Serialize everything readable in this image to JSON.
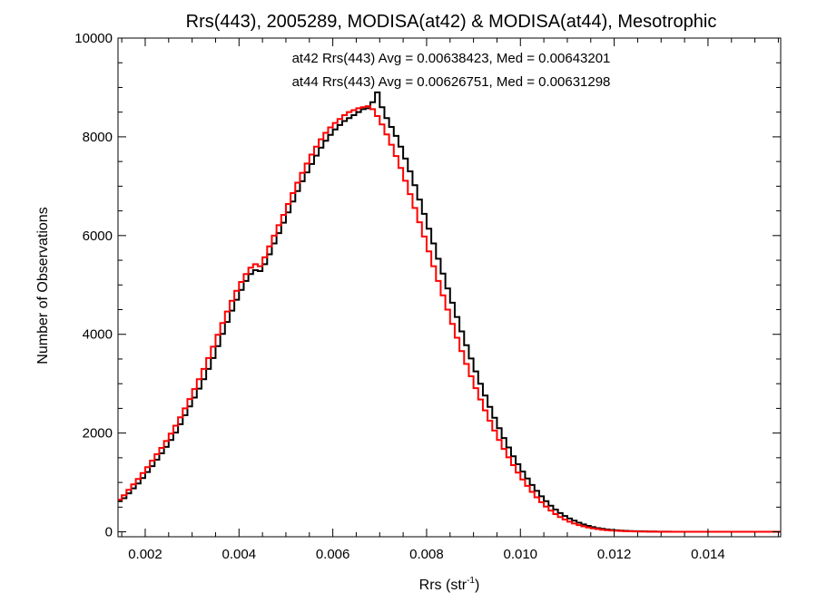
{
  "chart_data": {
    "type": "line",
    "title": "Rrs(443), 2005289, MODISA(at42) & MODISA(at44), Mesotrophic",
    "xlabel_base": "Rrs (str",
    "xlabel_sup": "-1",
    "xlabel_close": ")",
    "ylabel": "Number of Observations",
    "xlim": [
      0.00142,
      0.01555
    ],
    "ylim": [
      -100,
      10000
    ],
    "x_ticks": [
      "0.002",
      "0.004",
      "0.006",
      "0.008",
      "0.010",
      "0.012",
      "0.014"
    ],
    "x_tick_values": [
      0.002,
      0.004,
      0.006,
      0.008,
      0.01,
      0.012,
      0.014
    ],
    "y_ticks": [
      "0",
      "2000",
      "4000",
      "6000",
      "8000",
      "10000"
    ],
    "y_tick_values": [
      0,
      2000,
      4000,
      6000,
      8000,
      10000
    ],
    "grid": false,
    "annotations": [
      {
        "text": "at42 Rrs(443) Avg = 0.00638423, Med = 0.00643201",
        "color": "#000000"
      },
      {
        "text": "at44 Rrs(443) Avg = 0.00626751, Med = 0.00631298",
        "color": "#ff0000"
      }
    ],
    "series": [
      {
        "color": "#000000",
        "x": [
          0.00142,
          0.0015,
          0.0016,
          0.0017,
          0.0018,
          0.0019,
          0.002,
          0.0021,
          0.0022,
          0.0023,
          0.0024,
          0.0025,
          0.0026,
          0.0027,
          0.0028,
          0.0029,
          0.003,
          0.0031,
          0.0032,
          0.0033,
          0.0034,
          0.0035,
          0.0036,
          0.0037,
          0.0038,
          0.0039,
          0.004,
          0.0041,
          0.0042,
          0.0043,
          0.0044,
          0.0045,
          0.0046,
          0.0047,
          0.0048,
          0.0049,
          0.005,
          0.0051,
          0.0052,
          0.0053,
          0.0054,
          0.0055,
          0.0056,
          0.0057,
          0.0058,
          0.0059,
          0.006,
          0.0061,
          0.0062,
          0.0063,
          0.0064,
          0.0065,
          0.0066,
          0.0067,
          0.0068,
          0.0069,
          0.007,
          0.0071,
          0.0072,
          0.0073,
          0.0074,
          0.0075,
          0.0076,
          0.0077,
          0.0078,
          0.0079,
          0.008,
          0.0081,
          0.0082,
          0.0083,
          0.0084,
          0.0085,
          0.0086,
          0.0087,
          0.0088,
          0.0089,
          0.009,
          0.0091,
          0.0092,
          0.0093,
          0.0094,
          0.0095,
          0.0096,
          0.0097,
          0.0098,
          0.0099,
          0.01,
          0.0101,
          0.0102,
          0.0103,
          0.0104,
          0.0105,
          0.0106,
          0.0107,
          0.0108,
          0.0109,
          0.011,
          0.0111,
          0.0112,
          0.0113,
          0.0114,
          0.0115,
          0.0116,
          0.0117,
          0.0118,
          0.0119,
          0.012,
          0.0121,
          0.0122,
          0.0123,
          0.0124,
          0.0125,
          0.0126,
          0.0127,
          0.0128,
          0.0129,
          0.013,
          0.0132,
          0.0134,
          0.0136,
          0.0138,
          0.014,
          0.0142,
          0.0144,
          0.0146,
          0.0148,
          0.015,
          0.0152,
          0.01555
        ],
        "values": [
          620,
          680,
          780,
          880,
          980,
          1090,
          1210,
          1330,
          1460,
          1590,
          1720,
          1860,
          2010,
          2180,
          2360,
          2540,
          2720,
          2900,
          3090,
          3300,
          3520,
          3760,
          4010,
          4250,
          4480,
          4700,
          4900,
          5080,
          5220,
          5300,
          5280,
          5420,
          5620,
          5840,
          6050,
          6260,
          6470,
          6690,
          6900,
          7100,
          7280,
          7450,
          7620,
          7780,
          7920,
          8040,
          8150,
          8240,
          8320,
          8380,
          8440,
          8500,
          8560,
          8580,
          8700,
          8900,
          8600,
          8380,
          8200,
          8020,
          7800,
          7560,
          7300,
          7020,
          6730,
          6440,
          6140,
          5840,
          5530,
          5230,
          4930,
          4640,
          4350,
          4060,
          3780,
          3510,
          3250,
          3000,
          2760,
          2530,
          2310,
          2100,
          1900,
          1710,
          1530,
          1370,
          1220,
          1080,
          950,
          830,
          720,
          620,
          530,
          450,
          380,
          320,
          270,
          225,
          185,
          150,
          120,
          95,
          75,
          60,
          48,
          38,
          30,
          24,
          19,
          15,
          12,
          10,
          8,
          6,
          5,
          4,
          3,
          2,
          2,
          1,
          1,
          1,
          1,
          0,
          0,
          0,
          0,
          0,
          0
        ]
      },
      {
        "color": "#ff0000",
        "x": [
          0.00142,
          0.0015,
          0.0016,
          0.0017,
          0.0018,
          0.0019,
          0.002,
          0.0021,
          0.0022,
          0.0023,
          0.0024,
          0.0025,
          0.0026,
          0.0027,
          0.0028,
          0.0029,
          0.003,
          0.0031,
          0.0032,
          0.0033,
          0.0034,
          0.0035,
          0.0036,
          0.0037,
          0.0038,
          0.0039,
          0.004,
          0.0041,
          0.0042,
          0.0043,
          0.0044,
          0.0045,
          0.0046,
          0.0047,
          0.0048,
          0.0049,
          0.005,
          0.0051,
          0.0052,
          0.0053,
          0.0054,
          0.0055,
          0.0056,
          0.0057,
          0.0058,
          0.0059,
          0.006,
          0.0061,
          0.0062,
          0.0063,
          0.0064,
          0.0065,
          0.0066,
          0.0067,
          0.0068,
          0.0069,
          0.007,
          0.0071,
          0.0072,
          0.0073,
          0.0074,
          0.0075,
          0.0076,
          0.0077,
          0.0078,
          0.0079,
          0.008,
          0.0081,
          0.0082,
          0.0083,
          0.0084,
          0.0085,
          0.0086,
          0.0087,
          0.0088,
          0.0089,
          0.009,
          0.0091,
          0.0092,
          0.0093,
          0.0094,
          0.0095,
          0.0096,
          0.0097,
          0.0098,
          0.0099,
          0.01,
          0.0101,
          0.0102,
          0.0103,
          0.0104,
          0.0105,
          0.0106,
          0.0107,
          0.0108,
          0.0109,
          0.011,
          0.0111,
          0.0112,
          0.0113,
          0.0114,
          0.0115,
          0.0116,
          0.0117,
          0.0118,
          0.0119,
          0.012,
          0.0121,
          0.0122,
          0.0123,
          0.0124,
          0.0125,
          0.0126,
          0.0127,
          0.0128,
          0.0129,
          0.013,
          0.0132,
          0.0134,
          0.0136,
          0.0138,
          0.014,
          0.0142,
          0.0144,
          0.0146,
          0.0148,
          0.015,
          0.0152,
          0.01555
        ],
        "values": [
          650,
          740,
          850,
          960,
          1070,
          1190,
          1310,
          1440,
          1570,
          1700,
          1840,
          1990,
          2150,
          2320,
          2500,
          2690,
          2890,
          3090,
          3300,
          3520,
          3750,
          3990,
          4230,
          4460,
          4680,
          4880,
          5060,
          5220,
          5350,
          5420,
          5380,
          5560,
          5780,
          6000,
          6210,
          6420,
          6640,
          6860,
          7070,
          7270,
          7460,
          7640,
          7800,
          7950,
          8080,
          8190,
          8280,
          8360,
          8440,
          8500,
          8540,
          8580,
          8600,
          8620,
          8560,
          8420,
          8250,
          8050,
          7840,
          7610,
          7370,
          7110,
          6840,
          6560,
          6270,
          5980,
          5680,
          5380,
          5080,
          4790,
          4500,
          4210,
          3930,
          3660,
          3400,
          3150,
          2910,
          2680,
          2460,
          2250,
          2050,
          1860,
          1680,
          1510,
          1350,
          1200,
          1060,
          930,
          810,
          700,
          600,
          510,
          430,
          360,
          300,
          250,
          205,
          168,
          136,
          110,
          88,
          70,
          55,
          43,
          34,
          27,
          21,
          16,
          13,
          10,
          8,
          6,
          5,
          4,
          3,
          2,
          2,
          1,
          1,
          1,
          0,
          0,
          0,
          0,
          0,
          0,
          0,
          0,
          0
        ]
      }
    ]
  }
}
